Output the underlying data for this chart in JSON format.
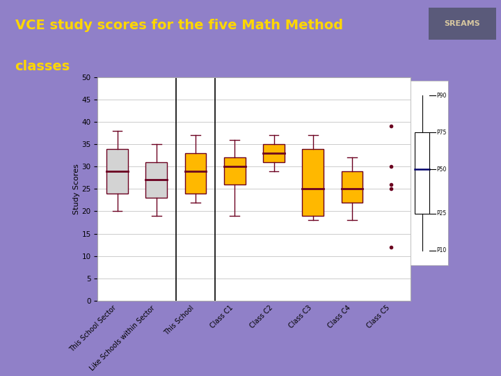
{
  "title_line1": "VCE study scores for the five Math Method",
  "title_line2": "classes",
  "title_color": "#FFD700",
  "background_color": "#9080C8",
  "plot_bg_color": "#FFFFFF",
  "ylabel": "Study Scores",
  "yticks": [
    0,
    5,
    10,
    15,
    20,
    25,
    30,
    35,
    40,
    45,
    50
  ],
  "ylim": [
    0,
    50
  ],
  "categories": [
    "This School Sector",
    "Like Schools within Sector",
    "This School",
    "Class C1",
    "Class C2",
    "Class C3",
    "Class C4",
    "Class C5"
  ],
  "box_data": [
    {
      "whislo": 20,
      "q1": 24,
      "med": 29,
      "q3": 34,
      "whishi": 38,
      "fliers": [],
      "color": "#D3D3D3"
    },
    {
      "whislo": 19,
      "q1": 23,
      "med": 27,
      "q3": 31,
      "whishi": 35,
      "fliers": [],
      "color": "#D3D3D3"
    },
    {
      "whislo": 22,
      "q1": 24,
      "med": 29,
      "q3": 33,
      "whishi": 37,
      "fliers": [],
      "color": "#FFB800"
    },
    {
      "whislo": 19,
      "q1": 26,
      "med": 30,
      "q3": 32,
      "whishi": 36,
      "fliers": [],
      "color": "#FFB800"
    },
    {
      "whislo": 29,
      "q1": 31,
      "med": 33,
      "q3": 35,
      "whishi": 37,
      "fliers": [],
      "color": "#FFB800"
    },
    {
      "whislo": 18,
      "q1": 19,
      "med": 25,
      "q3": 34,
      "whishi": 37,
      "fliers": [],
      "color": "#FFB800"
    },
    {
      "whislo": 18,
      "q1": 22,
      "med": 25,
      "q3": 29,
      "whishi": 32,
      "fliers": [],
      "color": "#FFB800"
    },
    {
      "whislo": null,
      "q1": null,
      "med": null,
      "q3": null,
      "whishi": null,
      "fliers": [
        39,
        30,
        26,
        25,
        12
      ],
      "color": "#FFB800"
    }
  ],
  "vlines": [
    1.5,
    2.5
  ],
  "median_color": "#6B0020",
  "whisker_color": "#6B0020",
  "box_edge_color": "#6B0020",
  "legend_items": [
    "P90",
    "P75",
    "P50",
    "P25",
    "P10"
  ],
  "sreams_bg": "#5A5A7A",
  "sreams_text": "#D8C8A0",
  "outer_border_color": "#CCCCCC"
}
